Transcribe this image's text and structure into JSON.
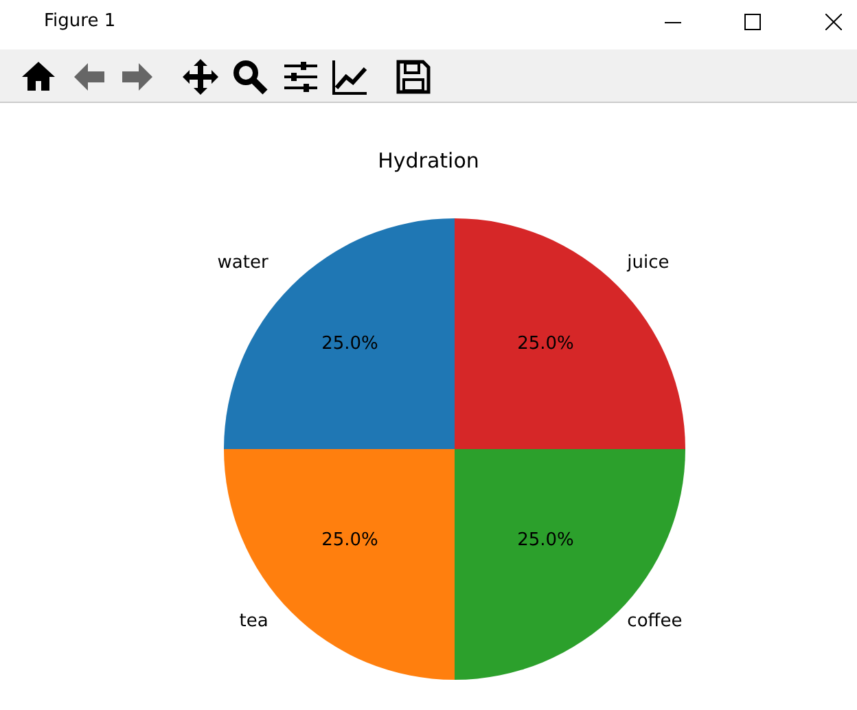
{
  "chart_data": {
    "type": "pie",
    "title": "Hydration",
    "categories": [
      "water",
      "tea",
      "coffee",
      "juice"
    ],
    "values": [
      25,
      25,
      25,
      25
    ],
    "colors": [
      "#1f77b4",
      "#ff7f0e",
      "#2ca02c",
      "#d62728"
    ],
    "value_labels": [
      "25.0%",
      "25.0%",
      "25.0%",
      "25.0%"
    ],
    "annotations": [
      "Figure 1"
    ]
  }
}
